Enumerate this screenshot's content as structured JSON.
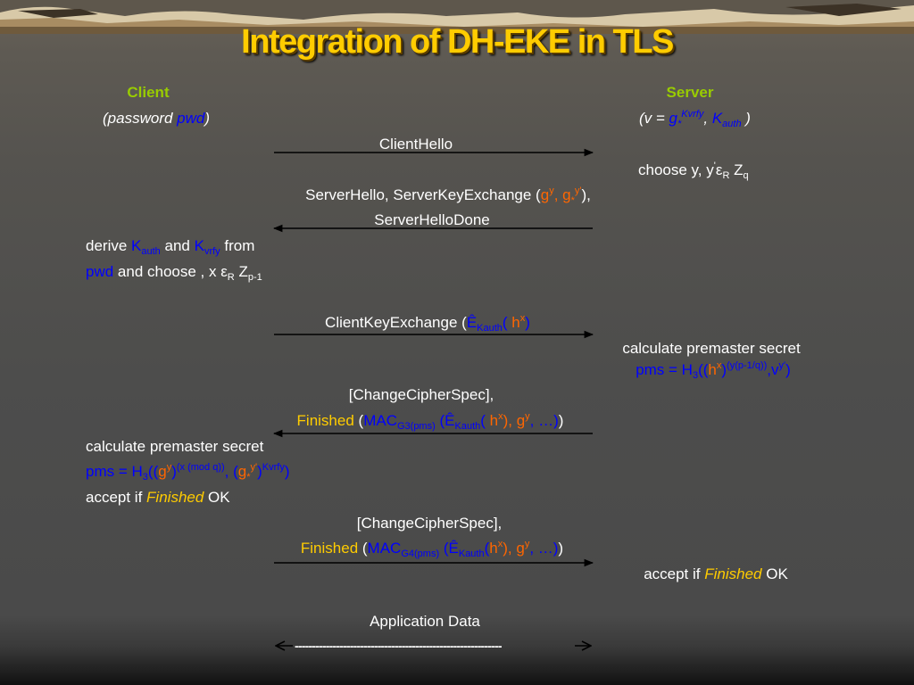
{
  "title": "Integration of DH-EKE in TLS",
  "client": {
    "label": "Client",
    "pre": "(password ",
    "pwd": "pwd",
    "post": ")"
  },
  "server": {
    "label": "Server",
    "open": "(",
    "v_label": "v",
    "eq": " = ",
    "g": "g",
    "sub_star": "*",
    "exp": "Kvrfy",
    "comma": ", ",
    "K": "K",
    "auth_sub": "auth",
    "close": " )"
  },
  "msg1": "ClientHello",
  "server_choose": {
    "text": "choose y, y",
    "prime": "'",
    "eps": "ε",
    "R": "R",
    "Z": " Z",
    "q": "q"
  },
  "msg2": {
    "line1_pre": "ServerHello, ServerKeyExchange (",
    "gy_g": "g",
    "gy_exp": "y",
    "sep": ", ",
    "g2": "g",
    "g2_sub": "*",
    "g2_exp": "y'",
    "line1_post": "),",
    "line2": "ServerHelloDone"
  },
  "client_derive": {
    "l1_a": "derive ",
    "K": "K",
    "auth": "auth",
    "and": " and ",
    "K2": "K",
    "vrfy": "vrfy",
    "from": " from",
    "pwd": "pwd",
    "l2_mid": " and choose , x ε",
    "R": "R",
    "Z": " Z",
    "p1": "p-1"
  },
  "msg3": {
    "pre": "ClientKeyExchange (",
    "E": "Ê",
    "Kauth": "Kauth",
    "paren": "( ",
    "h": "h",
    "x": "x",
    "post": ")"
  },
  "server_calc": {
    "line1": "calculate premaster secret",
    "pms": "pms = H",
    "three": "3",
    "open": "((",
    "h": "h",
    "x": "x",
    "close": ")",
    "exp": "(y(p-1/q))",
    "comma": ",v",
    "vexp": "y'",
    "end": ")"
  },
  "msg4": {
    "line1": "[ChangeCipherSpec],",
    "finished": "Finished",
    "open": " (",
    "MAC": "MAC",
    "G3": "G3(pms)",
    "space": " (",
    "E": "Ê",
    "Kauth": "Kauth",
    "paren": "( ",
    "h": "h",
    "x": "x",
    "mid": "), ",
    "g": "g",
    "y": "y",
    "dots": ", …)",
    "end": ")"
  },
  "client_calc": {
    "line1": "calculate premaster secret",
    "pms": "pms = H",
    "three": "3",
    "open": "((",
    "g": "g",
    "y": "y",
    "close": ")",
    "exp": "(x (mod q))",
    "comma": ", (",
    "g2": "g",
    "g2sub": "*",
    "g2exp": "y'",
    "close2": ")",
    "kv": "Kvrfy",
    "end": ")",
    "accept_pre": "accept if ",
    "accept_fin": "Finished",
    "accept_post": " OK"
  },
  "msg5": {
    "line1": "[ChangeCipherSpec],",
    "finished": "Finished",
    "open": " (",
    "MAC": "MAC",
    "G4": "G4(pms)",
    "space": " (",
    "E": "Ê",
    "Kauth": "Kauth",
    "paren": "(",
    "h": "h",
    "x": "x",
    "mid": "), ",
    "g": "g",
    "y": "y",
    "dots": ", …)",
    "end": ")"
  },
  "server_accept": {
    "pre": "accept if ",
    "fin": "Finished",
    "post": " OK"
  },
  "app_data": "Application Data",
  "app_dashes": "------------------------------------------------------------"
}
